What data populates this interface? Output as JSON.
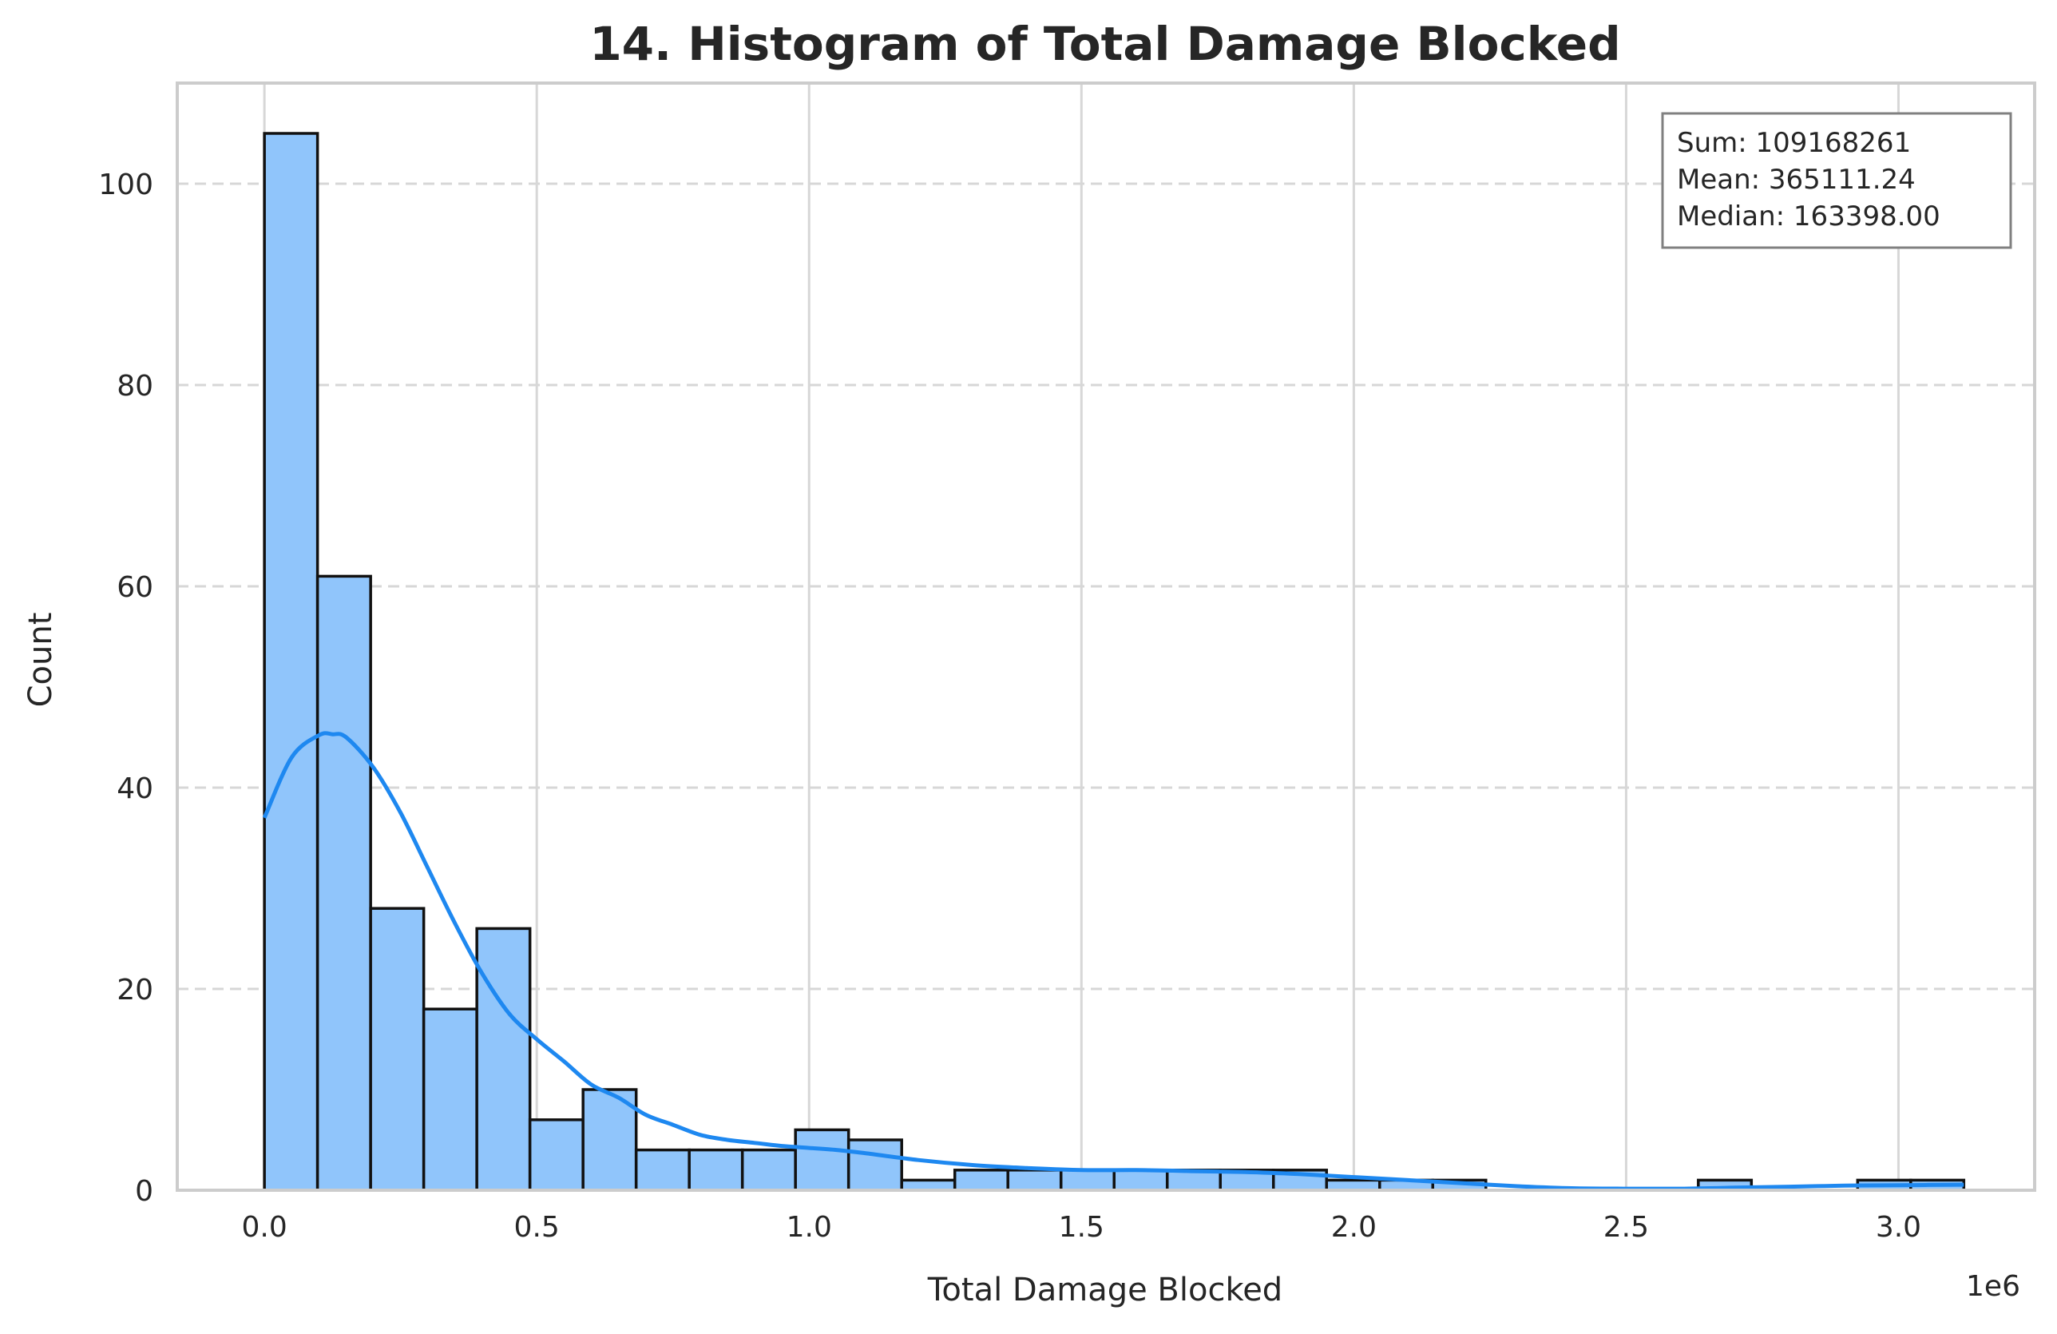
{
  "chart_data": {
    "type": "bar",
    "title": "14. Histogram of Total Damage Blocked",
    "xlabel": "Total Damage Blocked",
    "ylabel": "Count",
    "x_offset_label": "1e6",
    "xlim": [
      -0.16,
      3.25
    ],
    "ylim": [
      0,
      110
    ],
    "x_ticks": [
      0.0,
      0.5,
      1.0,
      1.5,
      2.0,
      2.5,
      3.0
    ],
    "x_tick_labels": [
      "0.0",
      "0.5",
      "1.0",
      "1.5",
      "2.0",
      "2.5",
      "3.0"
    ],
    "y_ticks": [
      0,
      20,
      40,
      60,
      80,
      100
    ],
    "y_tick_labels": [
      "0",
      "20",
      "40",
      "60",
      "80",
      "100"
    ],
    "grid": true,
    "bin_start": 0.0,
    "bin_width": 0.0975,
    "counts": [
      105,
      61,
      28,
      18,
      26,
      7,
      10,
      4,
      4,
      4,
      6,
      5,
      1,
      2,
      2,
      2,
      2,
      2,
      2,
      2,
      1,
      1,
      1,
      0,
      0,
      0,
      0,
      1,
      0,
      0,
      1,
      1
    ],
    "kde": {
      "x": [
        0.0,
        0.05,
        0.1,
        0.125,
        0.15,
        0.2,
        0.25,
        0.3,
        0.35,
        0.4,
        0.45,
        0.5,
        0.55,
        0.6,
        0.65,
        0.7,
        0.75,
        0.8,
        0.85,
        0.9,
        0.95,
        1.0,
        1.05,
        1.1,
        1.2,
        1.3,
        1.4,
        1.5,
        1.6,
        1.7,
        1.8,
        1.9,
        2.0,
        2.1,
        2.2,
        2.3,
        2.4,
        2.5,
        2.6,
        2.7,
        2.8,
        2.9,
        3.0,
        3.12
      ],
      "y": [
        37,
        43,
        45.2,
        45.3,
        45,
        42,
        37.5,
        32,
        26.5,
        21.5,
        17.5,
        15,
        12.8,
        10.5,
        9.2,
        7.5,
        6.5,
        5.5,
        5,
        4.7,
        4.4,
        4.2,
        4,
        3.7,
        3,
        2.5,
        2.2,
        2,
        2,
        1.9,
        1.8,
        1.6,
        1.3,
        1,
        0.7,
        0.4,
        0.2,
        0.15,
        0.15,
        0.25,
        0.35,
        0.45,
        0.5,
        0.55
      ]
    },
    "stats": {
      "sum": "Sum: 109168261",
      "mean": "Mean: 365111.24",
      "median": "Median: 163398.00"
    },
    "legend_placement": "top-right",
    "colors": {
      "bar_fill": "#90c5fb",
      "bar_edge": "#111111",
      "kde_line": "#1e88f0",
      "grid": "#d7d7d7",
      "frame": "#cccccc",
      "stats_box_edge": "#808080"
    }
  }
}
